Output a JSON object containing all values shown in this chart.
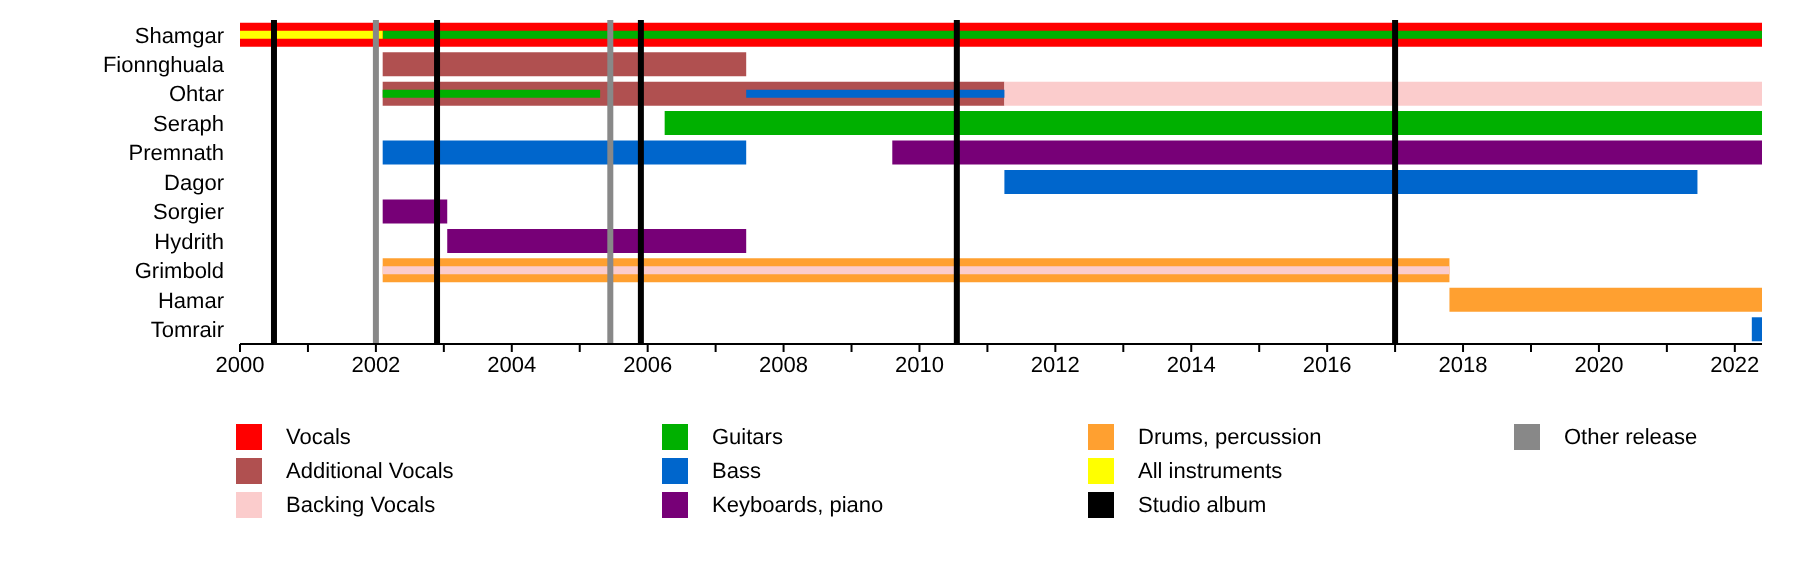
{
  "chart_data": {
    "type": "bar",
    "orientation": "horizontal",
    "legend": "bottom",
    "categories": [
      "Shamgar",
      "Fionnghuala",
      "Ohtar",
      "Seraph",
      "Premnath",
      "Dagor",
      "Sorgier",
      "Hydrith",
      "Grimbold",
      "Hamar",
      "Tomrair"
    ],
    "xlim": [
      2000,
      2022.4
    ],
    "xticks": [
      2000,
      {
        "value": 2001,
        "label": null
      },
      2002,
      {
        "value": 2003,
        "label": null
      },
      2004,
      {
        "value": 2005,
        "label": null
      },
      2006,
      {
        "value": 2007,
        "label": null
      },
      2008,
      {
        "value": 2009,
        "label": null
      },
      2010,
      {
        "value": 2011,
        "label": null
      },
      2012,
      {
        "value": 2013,
        "label": null
      },
      2014,
      {
        "value": 2015,
        "label": null
      },
      2016,
      {
        "value": 2017,
        "label": null
      },
      2018,
      {
        "value": 2019,
        "label": null
      },
      2020,
      {
        "value": 2021,
        "label": null
      },
      2022
    ],
    "series": [
      {
        "name": "Vocals",
        "color": "#ff0000",
        "base": [
          2000,
          null,
          null,
          null,
          null,
          null,
          null,
          null,
          null,
          null,
          null
        ],
        "values": [
          22.4,
          null,
          null,
          null,
          null,
          null,
          null,
          null,
          null,
          null,
          null
        ]
      },
      {
        "name": "Additional Vocals",
        "color": "#b05050",
        "base": [
          null,
          2002.1,
          2002.1,
          null,
          null,
          null,
          null,
          null,
          null,
          null,
          null
        ],
        "values": [
          null,
          5.35,
          9.15,
          null,
          null,
          null,
          null,
          null,
          null,
          null,
          null
        ]
      },
      {
        "name": "Backing Vocals",
        "color": "#fbcccc",
        "base": [
          null,
          null,
          2011.25,
          null,
          null,
          null,
          null,
          null,
          2002.1,
          null,
          null
        ],
        "values": [
          null,
          null,
          11.15,
          null,
          null,
          null,
          null,
          null,
          15.7,
          null,
          null
        ]
      },
      {
        "name": "Guitars",
        "color": "#00b000",
        "base": [
          2002.1,
          null,
          2002.1,
          2006.25,
          null,
          null,
          null,
          null,
          null,
          null,
          null
        ],
        "values": [
          20.3,
          null,
          3.2,
          16.15,
          null,
          null,
          null,
          null,
          null,
          null,
          null
        ]
      },
      {
        "name": "Bass",
        "color": "#0066cc",
        "base": [
          null,
          null,
          2007.45,
          null,
          2002.1,
          2011.25,
          null,
          null,
          null,
          null,
          2022.25
        ],
        "values": [
          null,
          null,
          3.8,
          null,
          5.35,
          10.2,
          null,
          null,
          null,
          null,
          0.15
        ]
      },
      {
        "name": "Keyboards, piano",
        "color": "#770077",
        "base": [
          null,
          null,
          null,
          null,
          2009.6,
          null,
          2002.1,
          2003.05,
          null,
          null,
          null
        ],
        "values": [
          null,
          null,
          null,
          null,
          12.8,
          null,
          0.95,
          4.4,
          null,
          null,
          null
        ]
      },
      {
        "name": "Drums, percussion",
        "color": "#ffa030",
        "base": [
          null,
          null,
          null,
          null,
          null,
          null,
          null,
          null,
          2002.1,
          2017.8,
          null
        ],
        "values": [
          null,
          null,
          null,
          null,
          null,
          null,
          null,
          null,
          15.7,
          4.6,
          null
        ]
      },
      {
        "name": "All instruments",
        "color": "#ffff00",
        "base": [
          2000,
          null,
          null,
          null,
          null,
          null,
          null,
          null,
          null,
          null,
          null
        ],
        "values": [
          2.1,
          null,
          null,
          null,
          null,
          null,
          null,
          null,
          null,
          null,
          null
        ]
      }
    ],
    "ref_lines": [
      {
        "axis": "x",
        "value": 2000.5,
        "label": "Studio album",
        "color": "#000000"
      },
      {
        "axis": "x",
        "value": 2002.9,
        "color": "#000000"
      },
      {
        "axis": "x",
        "value": 2005.9,
        "color": "#000000"
      },
      {
        "axis": "x",
        "value": 2010.55,
        "color": "#000000"
      },
      {
        "axis": "x",
        "value": 2017.0,
        "color": "#000000"
      },
      {
        "axis": "x",
        "value": 2002.0,
        "label": "Other release",
        "color": "#888888"
      },
      {
        "axis": "x",
        "value": 2005.45,
        "color": "#888888"
      }
    ]
  }
}
